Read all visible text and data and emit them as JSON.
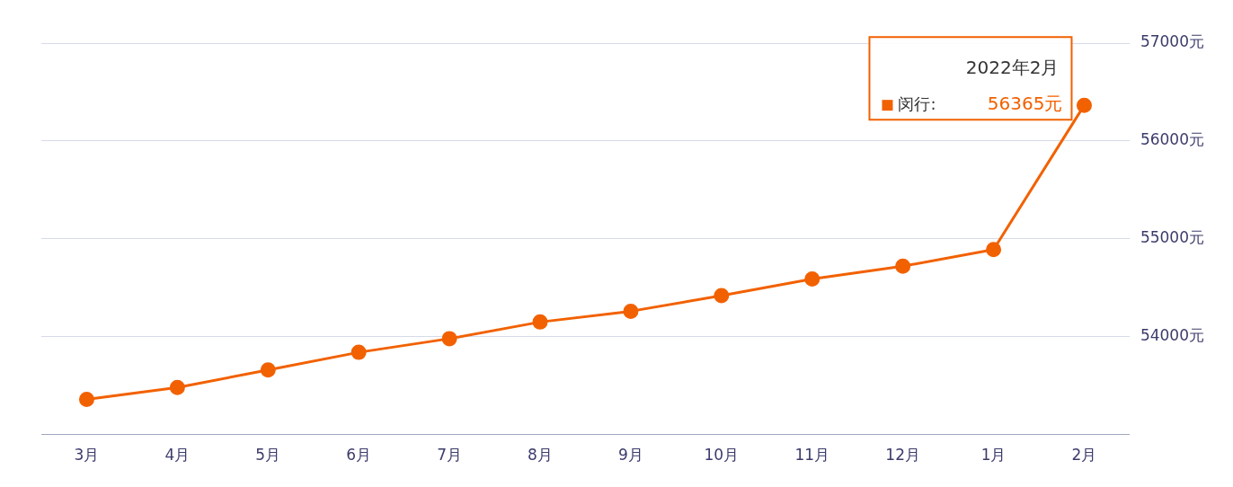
{
  "chart_data": {
    "type": "line",
    "categories": [
      "3月",
      "4月",
      "5月",
      "6月",
      "7月",
      "8月",
      "9月",
      "10月",
      "11月",
      "12月",
      "1月",
      "2月"
    ],
    "series": [
      {
        "name": "闵行:",
        "color": "#f26100",
        "values": [
          53360,
          53480,
          53660,
          53840,
          53980,
          54150,
          54260,
          54420,
          54590,
          54720,
          54890,
          56365
        ],
        "value_labels": [
          null,
          null,
          null,
          null,
          null,
          null,
          null,
          null,
          null,
          null,
          null,
          "56365元"
        ]
      }
    ],
    "ylim": [
      53000,
      57000
    ],
    "yticks": [
      {
        "value": 53000,
        "label": null
      },
      {
        "value": 54000,
        "label": "54000元"
      },
      {
        "value": 55000,
        "label": "55000元"
      },
      {
        "value": 56000,
        "label": "56000元"
      },
      {
        "value": 57000,
        "label": "57000元"
      }
    ],
    "annotations": [
      {
        "text": "2022年2月",
        "x": "2月",
        "y": 56365
      }
    ],
    "grid": "y",
    "marker": "circle",
    "line_style": "solid",
    "legend": "top right"
  }
}
